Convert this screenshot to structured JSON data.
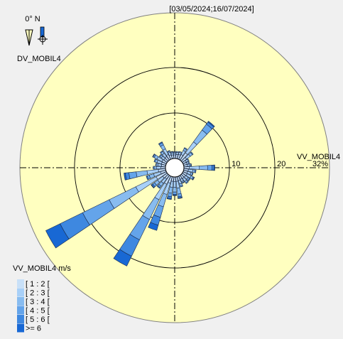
{
  "period": "[03/05/2024;16/07/2024]",
  "north_label": "0° N",
  "direction_variable": "DV_MOBIL4",
  "speed_variable": "VV_MOBIL4",
  "legend": {
    "title": "VV_MOBIL4 m/s",
    "bins": [
      "[ 1 : 2 [",
      "[ 2 : 3 [",
      "[ 3 : 4 [",
      "[ 4 : 5 [",
      "[ 5 : 6 [",
      ">= 6"
    ]
  },
  "colors": {
    "background": "#f0f0f0",
    "disk": "#ffffc0",
    "bins": [
      "#c8e0f8",
      "#a8d0f8",
      "#88bcf0",
      "#64a4ea",
      "#3e88e0",
      "#1868d4"
    ]
  },
  "chart_data": {
    "type": "wind-rose",
    "title": "[03/05/2024;16/07/2024]",
    "radial_label": "VV_MOBIL4",
    "radial_ticks": [
      10,
      20,
      32
    ],
    "radial_tick_labels": [
      "10",
      "20",
      "32%"
    ],
    "radial_max": 32,
    "direction_variable": "DV_MOBIL4",
    "speed_bins": [
      "[ 1 : 2 [",
      "[ 2 : 3 [",
      "[ 3 : 4 [",
      "[ 4 : 5 [",
      "[ 5 : 6 [",
      ">= 6"
    ],
    "unit": "%",
    "sectors": [
      {
        "dir": 0,
        "values": [
          0.8,
          0.4,
          0.2,
          0.1,
          0,
          0
        ]
      },
      {
        "dir": 10,
        "values": [
          0.9,
          0.5,
          0.2,
          0,
          0,
          0
        ]
      },
      {
        "dir": 20,
        "values": [
          1.0,
          0.5,
          0.2,
          0,
          0,
          0
        ]
      },
      {
        "dir": 30,
        "values": [
          1.2,
          1.0,
          0.5,
          0.2,
          0,
          0
        ]
      },
      {
        "dir": 40,
        "values": [
          2.0,
          3.0,
          3.2,
          1.6,
          0.6,
          0.2
        ]
      },
      {
        "dir": 50,
        "values": [
          1.2,
          1.0,
          0.6,
          0.2,
          0,
          0
        ]
      },
      {
        "dir": 60,
        "values": [
          0.8,
          0.5,
          0.2,
          0,
          0,
          0
        ]
      },
      {
        "dir": 70,
        "values": [
          0.8,
          0.4,
          0.2,
          0,
          0,
          0
        ]
      },
      {
        "dir": 80,
        "values": [
          0.8,
          0.5,
          0.3,
          0.1,
          0,
          0
        ]
      },
      {
        "dir": 90,
        "values": [
          1.2,
          2.2,
          1.8,
          1.0,
          0.4,
          0.2
        ]
      },
      {
        "dir": 100,
        "values": [
          1.0,
          1.0,
          0.5,
          0.2,
          0,
          0
        ]
      },
      {
        "dir": 110,
        "values": [
          0.9,
          0.8,
          0.4,
          0.1,
          0,
          0
        ]
      },
      {
        "dir": 120,
        "values": [
          1.0,
          1.0,
          0.5,
          0.2,
          0.1,
          0
        ]
      },
      {
        "dir": 130,
        "values": [
          0.9,
          0.7,
          0.4,
          0.2,
          0,
          0
        ]
      },
      {
        "dir": 140,
        "values": [
          0.9,
          0.8,
          0.4,
          0.2,
          0,
          0
        ]
      },
      {
        "dir": 150,
        "values": [
          0.8,
          0.6,
          0.3,
          0.1,
          0,
          0
        ]
      },
      {
        "dir": 160,
        "values": [
          0.9,
          0.8,
          0.5,
          0.2,
          0,
          0
        ]
      },
      {
        "dir": 170,
        "values": [
          1.0,
          1.5,
          1.3,
          0.6,
          0.3,
          0.1
        ]
      },
      {
        "dir": 180,
        "values": [
          1.0,
          1.3,
          1.0,
          0.5,
          0.2,
          0.1
        ]
      },
      {
        "dir": 190,
        "values": [
          1.0,
          1.3,
          1.3,
          0.8,
          0.4,
          0.2
        ]
      },
      {
        "dir": 200,
        "values": [
          1.5,
          2.6,
          2.8,
          2.4,
          1.8,
          1.2
        ]
      },
      {
        "dir": 210,
        "values": [
          2.0,
          3.8,
          4.8,
          5.0,
          4.0,
          2.4
        ]
      },
      {
        "dir": 220,
        "values": [
          1.0,
          1.2,
          0.8,
          0.4,
          0.2,
          0
        ]
      },
      {
        "dir": 230,
        "values": [
          1.2,
          1.4,
          0.9,
          0.5,
          0.3,
          0.1
        ]
      },
      {
        "dir": 240,
        "values": [
          2.5,
          5.0,
          6.5,
          6.5,
          5.5,
          3.5
        ]
      },
      {
        "dir": 250,
        "values": [
          1.2,
          1.6,
          1.0,
          0.5,
          0.2,
          0
        ]
      },
      {
        "dir": 260,
        "values": [
          1.6,
          2.5,
          2.4,
          1.6,
          0.8,
          0.3
        ]
      },
      {
        "dir": 270,
        "values": [
          1.0,
          1.0,
          0.5,
          0.2,
          0,
          0
        ]
      },
      {
        "dir": 280,
        "values": [
          0.9,
          0.8,
          0.4,
          0.1,
          0,
          0
        ]
      },
      {
        "dir": 290,
        "values": [
          1.0,
          1.0,
          0.5,
          0.2,
          0,
          0
        ]
      },
      {
        "dir": 300,
        "values": [
          1.1,
          1.2,
          0.7,
          0.3,
          0.1,
          0
        ]
      },
      {
        "dir": 310,
        "values": [
          0.9,
          0.7,
          0.4,
          0.2,
          0,
          0
        ]
      },
      {
        "dir": 320,
        "values": [
          1.0,
          0.9,
          0.5,
          0.2,
          0,
          0
        ]
      },
      {
        "dir": 330,
        "values": [
          1.2,
          1.4,
          1.0,
          0.5,
          0.2,
          0
        ]
      },
      {
        "dir": 340,
        "values": [
          0.9,
          0.6,
          0.3,
          0.1,
          0,
          0
        ]
      },
      {
        "dir": 350,
        "values": [
          0.8,
          0.5,
          0.2,
          0.1,
          0,
          0
        ]
      }
    ]
  }
}
